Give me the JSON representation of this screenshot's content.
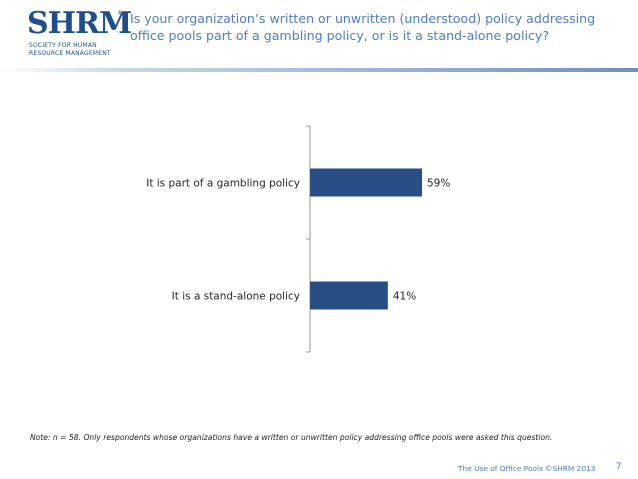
{
  "logo": {
    "word": "SHRM",
    "registered": "®",
    "subtitle": "Society for Human Resource Management"
  },
  "title": "Is your organization’s written or unwritten (understood) policy addressing office pools part of a gambling policy, or is it a stand-alone policy?",
  "colors": {
    "bar": "#274f85",
    "title": "#4e7ec4",
    "rule_light": "#c9d6e8",
    "rule_dark": "#6f8fbf"
  },
  "chart_data": {
    "type": "bar",
    "orientation": "horizontal",
    "categories": [
      "It is part of a gambling policy",
      "It is a stand-alone policy"
    ],
    "values": [
      59,
      41
    ],
    "value_labels": [
      "59%",
      "41%"
    ],
    "xlim": [
      0,
      100
    ],
    "grid": false,
    "legend": "none"
  },
  "note": "Note:  n = 58. Only respondents whose organizations have a written or unwritten policy addressing office pools were asked this question.",
  "footer": "The Use of Office Pools ©SHRM 2013",
  "page_number": "7"
}
